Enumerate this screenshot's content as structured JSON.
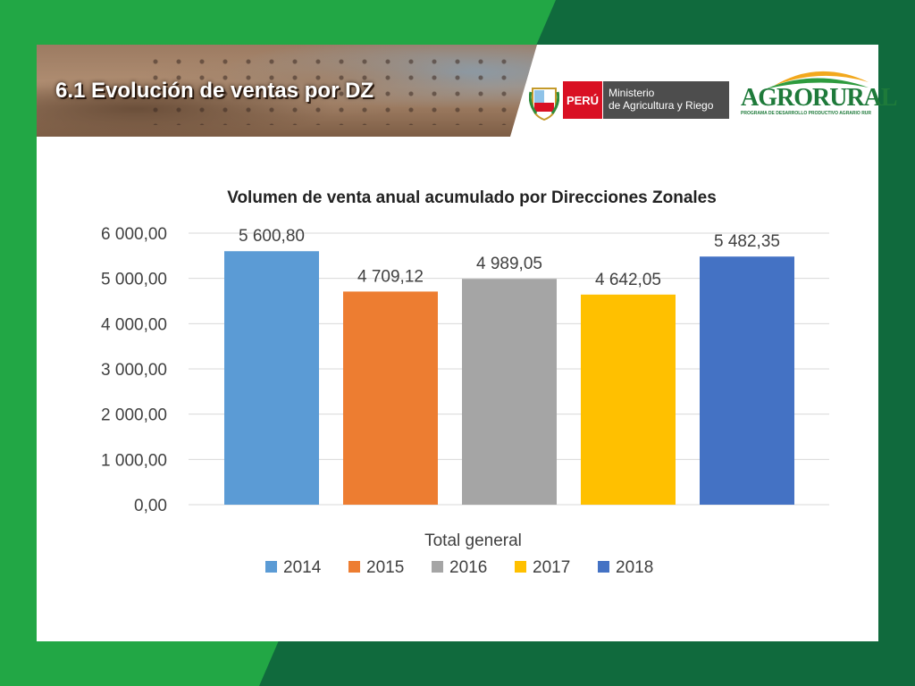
{
  "header": {
    "title": "6.1 Evolución de ventas por DZ",
    "peru_label": "PERÚ",
    "ministry_line1": "Ministerio",
    "ministry_line2": "de Agricultura y Riego",
    "agrorural": "AGRORURAL",
    "agrorural_sub": "PROGRAMA DE DESARROLLO PRODUCTIVO AGRARIO RURAL"
  },
  "colors": {
    "green_light": "#22a745",
    "green_dark": "#106a3d",
    "peru_red": "#d91023"
  },
  "chart_data": {
    "type": "bar",
    "title": "Volumen de venta anual acumulado por Direcciones Zonales",
    "categories": [
      "Total general"
    ],
    "series": [
      {
        "name": "2014",
        "values": [
          5600.8
        ],
        "label": "5 600,80",
        "color": "#5b9bd5"
      },
      {
        "name": "2015",
        "values": [
          4709.12
        ],
        "label": "4 709,12",
        "color": "#ed7d31"
      },
      {
        "name": "2016",
        "values": [
          4989.05
        ],
        "label": "4 989,05",
        "color": "#a5a5a5"
      },
      {
        "name": "2017",
        "values": [
          4642.05
        ],
        "label": "4 642,05",
        "color": "#ffc000"
      },
      {
        "name": "2018",
        "values": [
          5482.35
        ],
        "label": "5 482,35",
        "color": "#4472c4"
      }
    ],
    "ylim": [
      0,
      6000
    ],
    "yticks": [
      {
        "value": 0,
        "label": "0,00"
      },
      {
        "value": 1000,
        "label": "1 000,00"
      },
      {
        "value": 2000,
        "label": "2 000,00"
      },
      {
        "value": 3000,
        "label": "3 000,00"
      },
      {
        "value": 4000,
        "label": "4 000,00"
      },
      {
        "value": 5000,
        "label": "5 000,00"
      },
      {
        "value": 6000,
        "label": "6 000,00"
      }
    ],
    "grid": true,
    "legend": "bottom"
  }
}
